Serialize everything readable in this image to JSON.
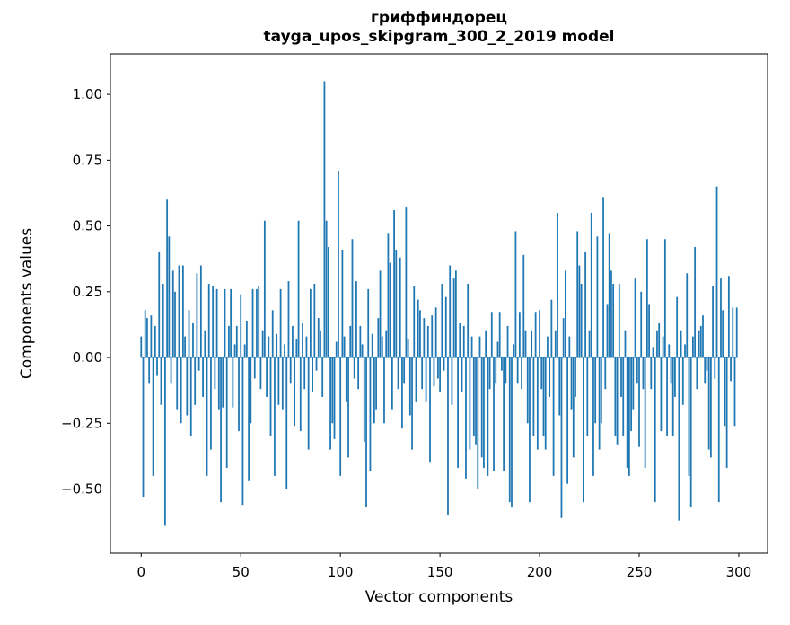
{
  "title": {
    "line1": "гриффиндорец",
    "line2": "tayga_upos_skipgram_300_2_2019 model"
  },
  "chart_data": {
    "type": "bar",
    "title": "гриффиндорец",
    "subtitle": "tayga_upos_skipgram_300_2_2019 model",
    "xlabel": "Vector components",
    "ylabel": "Components values",
    "bar_color": "#1f77b4",
    "axis_color": "#000000",
    "grid": false,
    "legend": "none",
    "n_components": 300,
    "xticks": [
      0,
      50,
      100,
      150,
      200,
      250,
      300
    ],
    "yticks": [
      -0.5,
      -0.25,
      0.0,
      0.25,
      0.5,
      0.75,
      1.0
    ],
    "xlim": [
      -15.45,
      314.45
    ],
    "ylim": [
      -0.744,
      1.154
    ],
    "values": [
      0.08,
      -0.53,
      0.18,
      0.15,
      -0.1,
      0.16,
      -0.45,
      0.12,
      -0.07,
      0.4,
      -0.18,
      0.28,
      -0.64,
      0.6,
      0.46,
      -0.1,
      0.33,
      0.25,
      -0.2,
      0.35,
      -0.25,
      0.35,
      0.08,
      -0.22,
      0.18,
      -0.3,
      0.13,
      -0.18,
      0.32,
      -0.05,
      0.35,
      -0.15,
      0.1,
      -0.45,
      0.28,
      -0.35,
      0.27,
      -0.12,
      0.26,
      -0.2,
      -0.55,
      -0.19,
      0.26,
      -0.42,
      0.12,
      0.26,
      -0.19,
      0.05,
      0.12,
      -0.28,
      0.24,
      -0.56,
      0.05,
      0.14,
      -0.47,
      -0.25,
      0.26,
      -0.08,
      0.26,
      0.27,
      -0.12,
      0.1,
      0.52,
      -0.15,
      0.08,
      -0.3,
      0.18,
      -0.45,
      0.09,
      -0.18,
      0.26,
      -0.2,
      0.05,
      -0.5,
      0.29,
      -0.1,
      0.12,
      -0.26,
      0.07,
      0.52,
      -0.28,
      0.13,
      -0.12,
      0.08,
      -0.35,
      0.26,
      -0.13,
      0.28,
      -0.05,
      0.15,
      0.1,
      -0.15,
      1.05,
      0.52,
      0.42,
      -0.35,
      -0.25,
      -0.31,
      0.06,
      0.71,
      -0.45,
      0.41,
      0.08,
      -0.17,
      -0.38,
      0.12,
      0.45,
      -0.08,
      0.29,
      -0.12,
      0.12,
      0.05,
      -0.32,
      -0.57,
      0.26,
      -0.43,
      0.09,
      -0.25,
      -0.2,
      0.15,
      0.33,
      0.08,
      -0.25,
      0.1,
      0.47,
      0.36,
      -0.2,
      0.56,
      0.41,
      -0.12,
      0.38,
      -0.27,
      -0.1,
      0.57,
      0.07,
      -0.22,
      -0.35,
      0.27,
      -0.17,
      0.22,
      0.18,
      -0.12,
      0.15,
      -0.17,
      0.12,
      -0.4,
      0.16,
      -0.11,
      0.19,
      -0.08,
      -0.13,
      0.28,
      -0.05,
      0.23,
      -0.6,
      0.35,
      -0.18,
      0.3,
      0.33,
      -0.42,
      0.13,
      -0.13,
      0.12,
      -0.46,
      0.28,
      -0.35,
      0.08,
      -0.3,
      -0.33,
      -0.5,
      0.08,
      -0.38,
      -0.42,
      0.1,
      -0.45,
      -0.12,
      0.17,
      -0.43,
      -0.1,
      0.06,
      0.17,
      -0.05,
      -0.43,
      -0.1,
      0.12,
      -0.55,
      -0.57,
      0.05,
      0.48,
      -0.1,
      0.17,
      -0.12,
      0.39,
      0.1,
      -0.25,
      -0.55,
      0.1,
      -0.3,
      0.17,
      -0.35,
      0.18,
      -0.12,
      -0.3,
      -0.35,
      0.08,
      -0.15,
      0.22,
      -0.45,
      0.1,
      0.55,
      -0.22,
      -0.61,
      0.15,
      0.33,
      -0.48,
      0.08,
      -0.2,
      -0.38,
      -0.15,
      0.48,
      0.35,
      0.28,
      -0.55,
      0.4,
      -0.3,
      0.1,
      0.55,
      -0.45,
      -0.25,
      0.46,
      -0.35,
      -0.25,
      0.61,
      -0.12,
      0.2,
      0.47,
      0.33,
      0.28,
      -0.3,
      -0.33,
      0.28,
      -0.15,
      -0.3,
      0.1,
      -0.42,
      -0.45,
      -0.28,
      -0.2,
      0.3,
      -0.1,
      -0.34,
      0.25,
      -0.12,
      -0.42,
      0.45,
      0.2,
      -0.12,
      0.04,
      -0.55,
      0.1,
      0.13,
      -0.28,
      0.08,
      0.45,
      -0.3,
      0.05,
      -0.1,
      -0.3,
      -0.15,
      0.23,
      -0.62,
      0.1,
      -0.18,
      0.05,
      0.32,
      -0.45,
      -0.57,
      0.08,
      0.42,
      -0.12,
      0.1,
      0.12,
      0.16,
      -0.1,
      -0.05,
      -0.35,
      -0.38,
      0.27,
      -0.08,
      0.65,
      -0.55,
      0.3,
      0.18,
      -0.26,
      -0.42,
      0.31,
      -0.09,
      0.19,
      -0.26,
      0.19
    ]
  }
}
